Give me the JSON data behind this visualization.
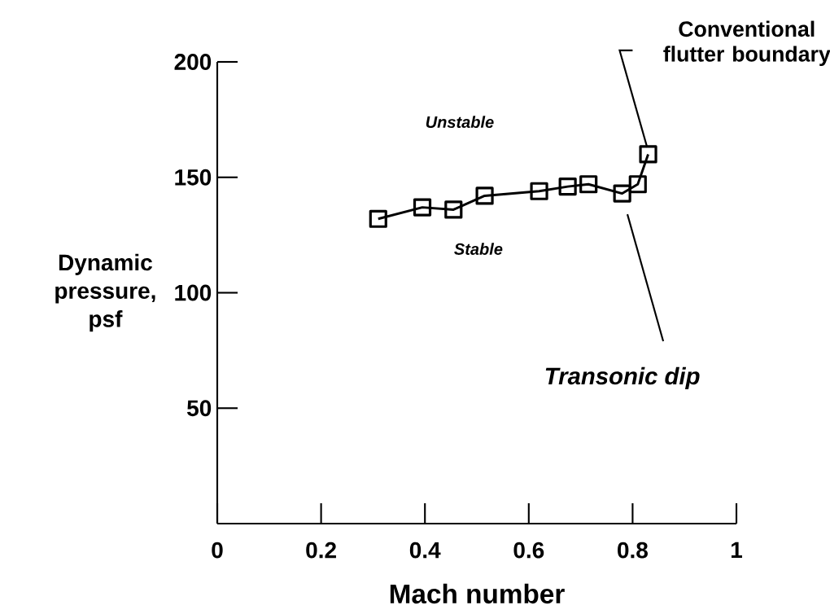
{
  "chart_data": {
    "type": "line",
    "xlabel": "Mach number",
    "ylabel": "Dynamic pressure, psf",
    "x": [
      0.31,
      0.395,
      0.455,
      0.515,
      0.62,
      0.675,
      0.715,
      0.78,
      0.81,
      0.83
    ],
    "series": [
      {
        "color": "#000000",
        "values": [
          132,
          137,
          136,
          142,
          144,
          146,
          147,
          143,
          147,
          160
        ]
      }
    ],
    "marker": "square",
    "line_style": "solid",
    "xlim": [
      0,
      1
    ],
    "ylim": [
      0,
      200
    ],
    "xticks": [
      0,
      0.2,
      0.4,
      0.6,
      0.8,
      1
    ],
    "yticks": [
      50,
      100,
      150,
      200
    ],
    "annotations": [
      "Unstable",
      "Stable",
      "Transonic dip",
      "Conventional flutter boundary"
    ]
  }
}
